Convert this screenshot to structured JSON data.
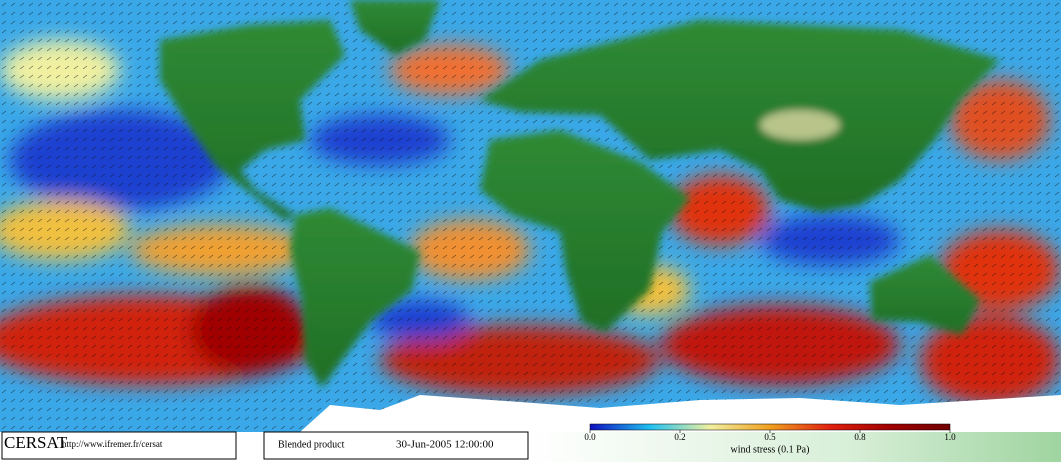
{
  "header": {
    "logo": "CERSAT",
    "url": "http://www.ifremer.fr/cersat",
    "product": "Blended product",
    "date": "30-Jun-2005 12:00:00"
  },
  "colorbar": {
    "label": "wind stress (0.1 Pa)",
    "range": [
      0,
      1
    ],
    "ticks": [
      {
        "value": 0,
        "label": "0.0"
      },
      0.2,
      0.5,
      0.8,
      {
        "value": 1,
        "label": "1.0"
      }
    ],
    "colors": [
      "#1010c0",
      "#20c0f0",
      "#f0f0a0",
      "#f0a020",
      "#e02010",
      "#a00000",
      "#700000"
    ]
  }
}
